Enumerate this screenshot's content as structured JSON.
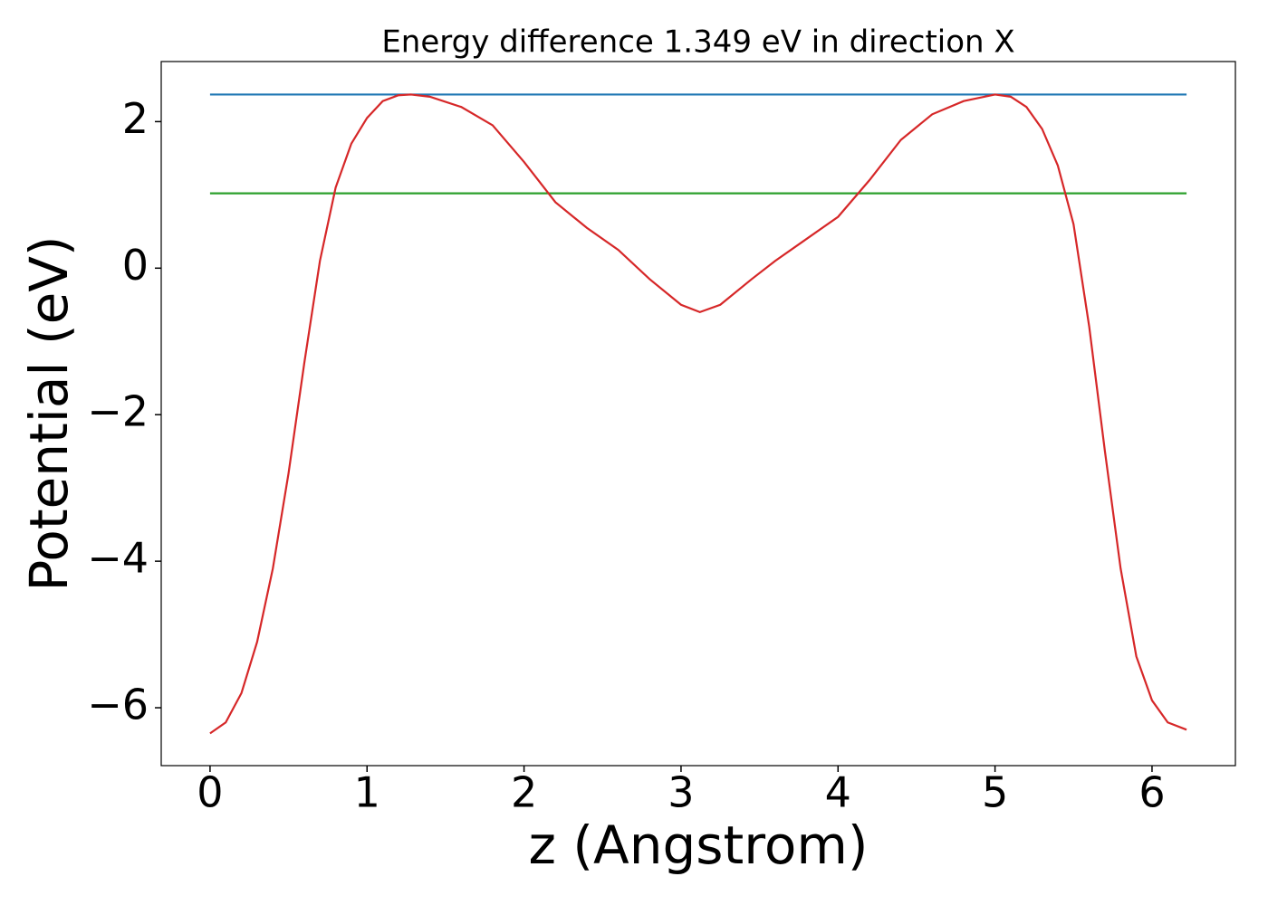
{
  "chart_data": {
    "type": "line",
    "title": "Energy difference 1.349 eV in direction X",
    "x_label": "z (Angstrom)",
    "y_label": "Potential (eV)",
    "xlim": [
      -0.311,
      6.531
    ],
    "ylim": [
      -6.79,
      2.82
    ],
    "xticks": [
      0,
      1,
      2,
      3,
      4,
      5,
      6
    ],
    "yticks": [
      {
        "value": -6,
        "label": "−6"
      },
      {
        "value": -4,
        "label": "−4"
      },
      {
        "value": -2,
        "label": "−2"
      },
      0,
      2
    ],
    "grid": false,
    "series": [
      {
        "color": "#1f77b4",
        "x": [
          0,
          6.22
        ],
        "values": [
          2.37,
          2.37
        ]
      },
      {
        "color": "#2ca02c",
        "x": [
          0,
          6.22
        ],
        "values": [
          1.021,
          1.021
        ]
      },
      {
        "color": "#d62728",
        "x": [
          0,
          0.1,
          0.2,
          0.3,
          0.4,
          0.5,
          0.6,
          0.7,
          0.8,
          0.9,
          1.0,
          1.1,
          1.2,
          1.28,
          1.4,
          1.6,
          1.8,
          2.0,
          2.2,
          2.4,
          2.6,
          2.8,
          3.0,
          3.12,
          3.25,
          3.45,
          3.6,
          3.8,
          4.0,
          4.2,
          4.4,
          4.6,
          4.8,
          5.0,
          5.1,
          5.2,
          5.3,
          5.4,
          5.5,
          5.6,
          5.7,
          5.8,
          5.9,
          6.0,
          6.1,
          6.22
        ],
        "values": [
          -6.35,
          -6.2,
          -5.8,
          -5.1,
          -4.1,
          -2.8,
          -1.3,
          0.1,
          1.1,
          1.7,
          2.05,
          2.28,
          2.36,
          2.37,
          2.34,
          2.2,
          1.95,
          1.45,
          0.9,
          0.55,
          0.25,
          -0.15,
          -0.5,
          -0.6,
          -0.5,
          -0.15,
          0.1,
          0.4,
          0.7,
          1.2,
          1.75,
          2.1,
          2.28,
          2.37,
          2.34,
          2.2,
          1.9,
          1.4,
          0.6,
          -0.8,
          -2.5,
          -4.1,
          -5.3,
          -5.9,
          -6.2,
          -6.3
        ]
      }
    ]
  }
}
